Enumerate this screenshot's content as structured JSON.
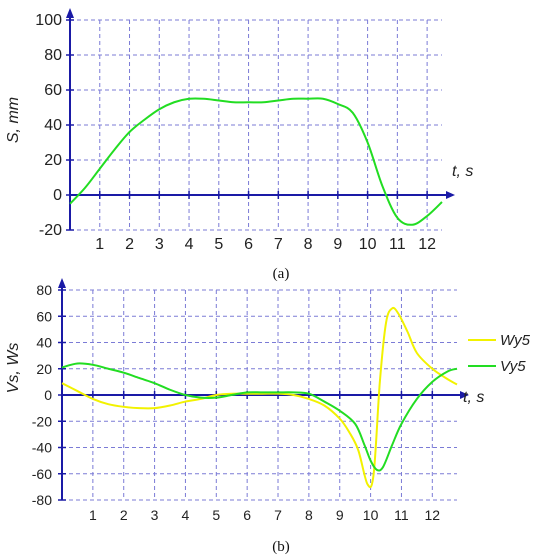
{
  "colors": {
    "axis": "#1a1aa6",
    "grid": "#7b7bd6",
    "yellow": "#f2f200",
    "green": "#22dd22"
  },
  "chart_data": [
    {
      "type": "line",
      "caption": "(a)",
      "ylabel": "S, mm",
      "xlabel": "t, s",
      "xlim": [
        0,
        12.5
      ],
      "ylim": [
        -20,
        100
      ],
      "xticks": [
        1,
        2,
        3,
        4,
        5,
        6,
        7,
        8,
        9,
        10,
        11,
        12
      ],
      "xtick_labels": [
        "1",
        "2",
        "3",
        "4",
        "5",
        "6",
        "7",
        "8",
        "9",
        "10",
        "11",
        "12"
      ],
      "yticks": [
        -20,
        0,
        20,
        40,
        60,
        80,
        100
      ],
      "ytick_labels": [
        "-20",
        "0",
        "20",
        "40",
        "60",
        "80",
        "100"
      ],
      "series": [
        {
          "color": "#22dd22",
          "x": [
            0,
            0.5,
            1,
            1.5,
            2,
            2.5,
            3,
            3.5,
            4,
            4.5,
            5,
            5.5,
            6,
            6.5,
            7,
            7.5,
            8,
            8.5,
            9,
            9.5,
            10,
            10.5,
            11,
            11.5,
            12,
            12.5
          ],
          "y": [
            -5,
            4,
            15,
            26,
            36,
            43,
            49,
            53,
            55,
            55,
            54,
            53,
            53,
            53,
            54,
            55,
            55,
            55,
            52,
            47,
            30,
            5,
            -13,
            -17,
            -12,
            -4
          ]
        }
      ]
    },
    {
      "type": "line",
      "caption": "(b)",
      "ylabel": "Vs, Ws",
      "xlabel": "t, s",
      "xlim": [
        0,
        12.8
      ],
      "ylim": [
        -80,
        80
      ],
      "xticks": [
        1,
        2,
        3,
        4,
        5,
        6,
        7,
        8,
        9,
        10,
        11,
        12
      ],
      "xtick_labels": [
        "1",
        "2",
        "3",
        "4",
        "5",
        "6",
        "7",
        "8",
        "9",
        "10",
        "11",
        "12"
      ],
      "yticks": [
        -80,
        -60,
        -40,
        -20,
        0,
        20,
        40,
        60,
        80
      ],
      "ytick_labels": [
        "-80",
        "-60",
        "-40",
        "-20",
        "0",
        "20",
        "40",
        "60",
        "80"
      ],
      "legend_position": "right",
      "series": [
        {
          "name": "Wy5",
          "color": "#f2f200",
          "x": [
            0,
            0.5,
            1,
            1.5,
            2,
            2.5,
            3,
            3.5,
            4,
            4.5,
            5,
            5.5,
            6,
            6.5,
            7,
            7.5,
            8,
            8.5,
            9,
            9.3,
            9.6,
            9.9,
            10.1,
            10.3,
            10.5,
            10.7,
            10.9,
            11.2,
            11.5,
            12,
            12.5,
            12.8
          ],
          "y": [
            9,
            3,
            -3,
            -7,
            -9,
            -10,
            -10,
            -8,
            -5,
            -3,
            0,
            1,
            1,
            1,
            1,
            0,
            -3,
            -8,
            -18,
            -28,
            -42,
            -68,
            -60,
            10,
            55,
            66,
            62,
            48,
            32,
            20,
            12,
            8
          ]
        },
        {
          "name": "Vy5",
          "color": "#22dd22",
          "x": [
            0,
            0.5,
            1,
            1.5,
            2,
            2.5,
            3,
            3.5,
            4,
            4.5,
            5,
            5.5,
            6,
            6.5,
            7,
            7.5,
            8,
            8.5,
            9,
            9.5,
            9.8,
            10,
            10.2,
            10.4,
            10.7,
            11,
            11.5,
            12,
            12.5,
            12.8
          ],
          "y": [
            21,
            24,
            23,
            20,
            17,
            13,
            9,
            4,
            0,
            -2,
            -2,
            0,
            2,
            2,
            2,
            2,
            1,
            -5,
            -12,
            -22,
            -38,
            -50,
            -57,
            -55,
            -38,
            -22,
            -3,
            10,
            18,
            20
          ]
        }
      ]
    }
  ]
}
